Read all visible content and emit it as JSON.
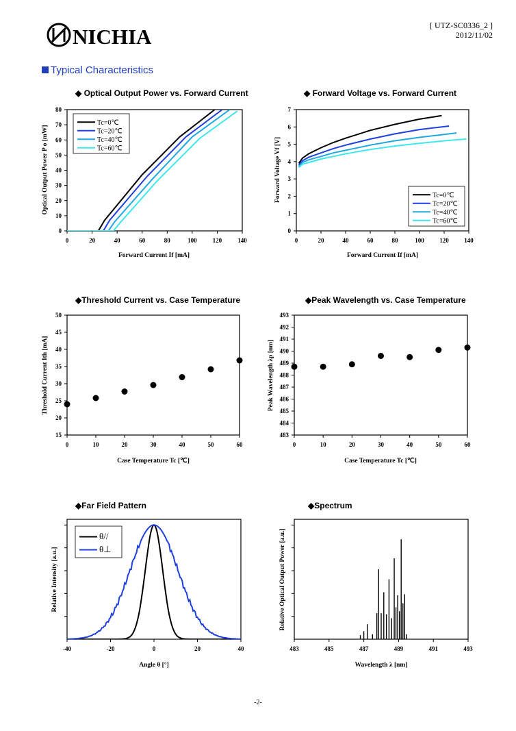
{
  "header": {
    "brand": "NICHIA",
    "doc_id": "[ UTZ-SC0336_2 ]",
    "date": "2012/11/02"
  },
  "section_title": "Typical Characteristics",
  "page_number": "-2-",
  "colors": {
    "tc0": "#000000",
    "tc20": "#1f3fdf",
    "tc40": "#1fa8e0",
    "tc60": "#3ee6ee",
    "parallel": "#000000",
    "perp": "#1f3fdf",
    "accent": "#1f3fbf"
  },
  "chart_data": [
    {
      "id": "po_if",
      "type": "line",
      "title": "◆ Optical Output Power vs. Forward Current",
      "xlabel": "Forward Current If [mA]",
      "ylabel": "Optical Output Power P o [mW]",
      "xlim": [
        0,
        140
      ],
      "ylim": [
        0,
        80
      ],
      "xticks": [
        0,
        20,
        40,
        60,
        80,
        100,
        120,
        140
      ],
      "yticks": [
        0,
        10,
        20,
        30,
        40,
        50,
        60,
        70,
        80
      ],
      "legend": "top-left",
      "series": [
        {
          "name": "Tc=0℃",
          "color": "#000000",
          "points": [
            [
              0,
              0
            ],
            [
              25,
              0
            ],
            [
              30,
              7
            ],
            [
              60,
              37
            ],
            [
              90,
              62
            ],
            [
              118,
              80
            ]
          ]
        },
        {
          "name": "Tc=20℃",
          "color": "#1f3fdf",
          "points": [
            [
              0,
              0
            ],
            [
              29,
              0
            ],
            [
              34,
              7
            ],
            [
              64,
              36
            ],
            [
              95,
              62
            ],
            [
              124,
              80
            ]
          ]
        },
        {
          "name": "Tc=40℃",
          "color": "#1fa8e0",
          "points": [
            [
              0,
              0
            ],
            [
              33,
              0
            ],
            [
              38,
              6
            ],
            [
              68,
              34
            ],
            [
              100,
              62
            ],
            [
              130,
              80
            ]
          ]
        },
        {
          "name": "Tc=60℃",
          "color": "#3ee6ee",
          "points": [
            [
              0,
              0
            ],
            [
              37,
              0
            ],
            [
              42,
              5
            ],
            [
              72,
              33
            ],
            [
              106,
              61
            ],
            [
              136,
              79
            ]
          ]
        }
      ]
    },
    {
      "id": "vf_if",
      "type": "line",
      "title": "◆ Forward Voltage vs. Forward Current",
      "xlabel": "Forward Current If [mA]",
      "ylabel": "Forward Voltage Vf [V]",
      "xlim": [
        0,
        140
      ],
      "ylim": [
        0,
        7
      ],
      "xticks": [
        0,
        20,
        40,
        60,
        80,
        100,
        120,
        140
      ],
      "yticks": [
        0,
        1,
        2,
        3,
        4,
        5,
        6,
        7
      ],
      "legend": "bottom-right",
      "series": [
        {
          "name": "Tc=0℃",
          "color": "#000000",
          "points": [
            [
              2,
              3.9
            ],
            [
              5,
              4.2
            ],
            [
              10,
              4.45
            ],
            [
              20,
              4.8
            ],
            [
              30,
              5.1
            ],
            [
              40,
              5.35
            ],
            [
              60,
              5.8
            ],
            [
              80,
              6.15
            ],
            [
              100,
              6.45
            ],
            [
              118,
              6.65
            ]
          ]
        },
        {
          "name": "Tc=20℃",
          "color": "#1f3fdf",
          "points": [
            [
              2,
              3.8
            ],
            [
              5,
              4.05
            ],
            [
              10,
              4.25
            ],
            [
              20,
              4.5
            ],
            [
              30,
              4.75
            ],
            [
              40,
              4.95
            ],
            [
              60,
              5.3
            ],
            [
              80,
              5.6
            ],
            [
              100,
              5.85
            ],
            [
              124,
              6.05
            ]
          ]
        },
        {
          "name": "Tc=40℃",
          "color": "#1fa8e0",
          "points": [
            [
              2,
              3.7
            ],
            [
              5,
              3.95
            ],
            [
              10,
              4.1
            ],
            [
              20,
              4.3
            ],
            [
              30,
              4.5
            ],
            [
              40,
              4.65
            ],
            [
              60,
              4.95
            ],
            [
              80,
              5.2
            ],
            [
              100,
              5.4
            ],
            [
              130,
              5.65
            ]
          ]
        },
        {
          "name": "Tc=60℃",
          "color": "#3ee6ee",
          "points": [
            [
              2,
              3.65
            ],
            [
              5,
              3.85
            ],
            [
              10,
              3.95
            ],
            [
              20,
              4.15
            ],
            [
              30,
              4.3
            ],
            [
              40,
              4.45
            ],
            [
              60,
              4.7
            ],
            [
              80,
              4.9
            ],
            [
              100,
              5.05
            ],
            [
              120,
              5.2
            ],
            [
              138,
              5.3
            ]
          ]
        }
      ]
    },
    {
      "id": "ith_tc",
      "type": "scatter",
      "title": "◆Threshold Current vs. Case Temperature",
      "xlabel": "Case Temperature Tc [℃]",
      "ylabel": "Threshold Current Ith [mA]",
      "xlim": [
        0,
        60
      ],
      "ylim": [
        15,
        50
      ],
      "xticks": [
        0,
        10,
        20,
        30,
        40,
        50,
        60
      ],
      "yticks": [
        15,
        20,
        25,
        30,
        35,
        40,
        45,
        50
      ],
      "x": [
        0,
        10,
        20,
        30,
        40,
        50,
        60
      ],
      "y": [
        24.0,
        25.8,
        27.7,
        29.6,
        31.9,
        34.2,
        36.8
      ]
    },
    {
      "id": "lambda_tc",
      "type": "scatter",
      "title": "◆Peak Wavelength vs. Case Temperature",
      "xlabel": "Case Temperature Tc [℃]",
      "ylabel": "Peak Wavelength λp [nm]",
      "xlim": [
        0,
        60
      ],
      "ylim": [
        483,
        493
      ],
      "xticks": [
        0,
        10,
        20,
        30,
        40,
        50,
        60
      ],
      "yticks": [
        483,
        484,
        485,
        486,
        487,
        488,
        489,
        490,
        491,
        492,
        493
      ],
      "x": [
        0,
        10,
        20,
        30,
        40,
        50,
        60
      ],
      "y": [
        488.7,
        488.7,
        488.9,
        489.6,
        489.5,
        490.1,
        490.3
      ]
    },
    {
      "id": "ffp",
      "type": "line",
      "title": "◆Far Field Pattern",
      "xlabel": "Angle θ [°]",
      "ylabel": "Relative Intensity [a.u.]",
      "xlim": [
        -40,
        40
      ],
      "ylim": [
        0,
        1.05
      ],
      "xticks": [
        -40,
        -20,
        0,
        20,
        40
      ],
      "legend": "top-left",
      "series": [
        {
          "name": "θ//",
          "color": "#000000",
          "gaussian": {
            "center": 0,
            "sigma": 4.0,
            "peak": 1.0
          }
        },
        {
          "name": "θ⊥",
          "color": "#1f3fdf",
          "gaussian": {
            "center": 0,
            "sigma": 11.0,
            "peak": 1.0
          }
        }
      ]
    },
    {
      "id": "spectrum",
      "type": "bar",
      "title": "◆Spectrum",
      "xlabel": "Wavelength λ [nm]",
      "ylabel": "Relative Optical Output Power [a.u.]",
      "xlim": [
        483,
        493
      ],
      "ylim": [
        0,
        1.2
      ],
      "xticks": [
        483,
        485,
        487,
        489,
        491,
        493
      ],
      "x": [
        486.8,
        487.0,
        487.2,
        487.5,
        487.75,
        487.85,
        488.0,
        488.15,
        488.3,
        488.45,
        488.6,
        488.75,
        488.85,
        488.95,
        489.05,
        489.15,
        489.25,
        489.35,
        489.45
      ],
      "y": [
        0.04,
        0.08,
        0.15,
        0.05,
        0.26,
        0.7,
        0.26,
        0.47,
        0.25,
        0.6,
        0.21,
        0.81,
        0.32,
        0.44,
        0.28,
        1.0,
        0.36,
        0.45,
        0.05
      ]
    }
  ]
}
